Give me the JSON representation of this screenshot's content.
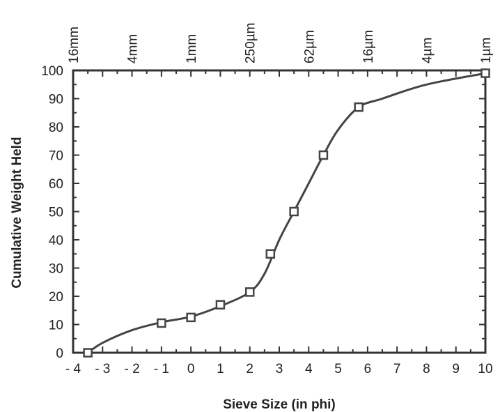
{
  "chart_data": {
    "type": "line",
    "title": "",
    "xlabel": "Sieve Size (in phi)",
    "ylabel": "Cumulative Weight Held",
    "xlim": [
      -4,
      10
    ],
    "ylim": [
      0,
      100
    ],
    "x_ticks": [
      -4,
      -3,
      -2,
      -1,
      0,
      1,
      2,
      3,
      4,
      5,
      6,
      7,
      8,
      9,
      10
    ],
    "x_tick_labels": [
      "- 4",
      "- 3",
      "- 2",
      "- 1",
      "0",
      "1",
      "2",
      "3",
      "4",
      "5",
      "6",
      "7",
      "8",
      "9",
      "10"
    ],
    "y_ticks": [
      0,
      10,
      20,
      30,
      40,
      50,
      60,
      70,
      80,
      90,
      100
    ],
    "y_tick_labels": [
      "0",
      "10",
      "20",
      "30",
      "40",
      "50",
      "60",
      "70",
      "80",
      "90",
      "100"
    ],
    "top_axis": {
      "ticks": [
        -4,
        -2,
        0,
        2,
        4,
        6,
        8,
        10
      ],
      "labels": [
        "16mm",
        "4mm",
        "1mm",
        "250µm",
        "62µm",
        "16µm",
        "4µm",
        "1µm"
      ]
    },
    "series": [
      {
        "x": [
          -3.5,
          -1,
          0,
          1,
          2,
          2.7,
          3.5,
          4.5,
          5.7,
          10
        ],
        "y": [
          0,
          10.5,
          12.5,
          17,
          21.5,
          35,
          50,
          70,
          87,
          99
        ],
        "marker": "square",
        "color": "#444444"
      }
    ],
    "curve": {
      "x": [
        -3.5,
        -3.0,
        -2.0,
        -1.0,
        0.0,
        1.0,
        2.0,
        2.5,
        3.0,
        3.5,
        4.0,
        4.5,
        5.0,
        5.7,
        6.5,
        8.0,
        10.0
      ],
      "y": [
        0,
        3.5,
        8.0,
        10.8,
        12.8,
        16.5,
        21.5,
        28,
        40,
        50,
        60,
        70,
        79,
        87,
        90,
        95,
        99
      ]
    },
    "grid": false,
    "legend": "none"
  }
}
